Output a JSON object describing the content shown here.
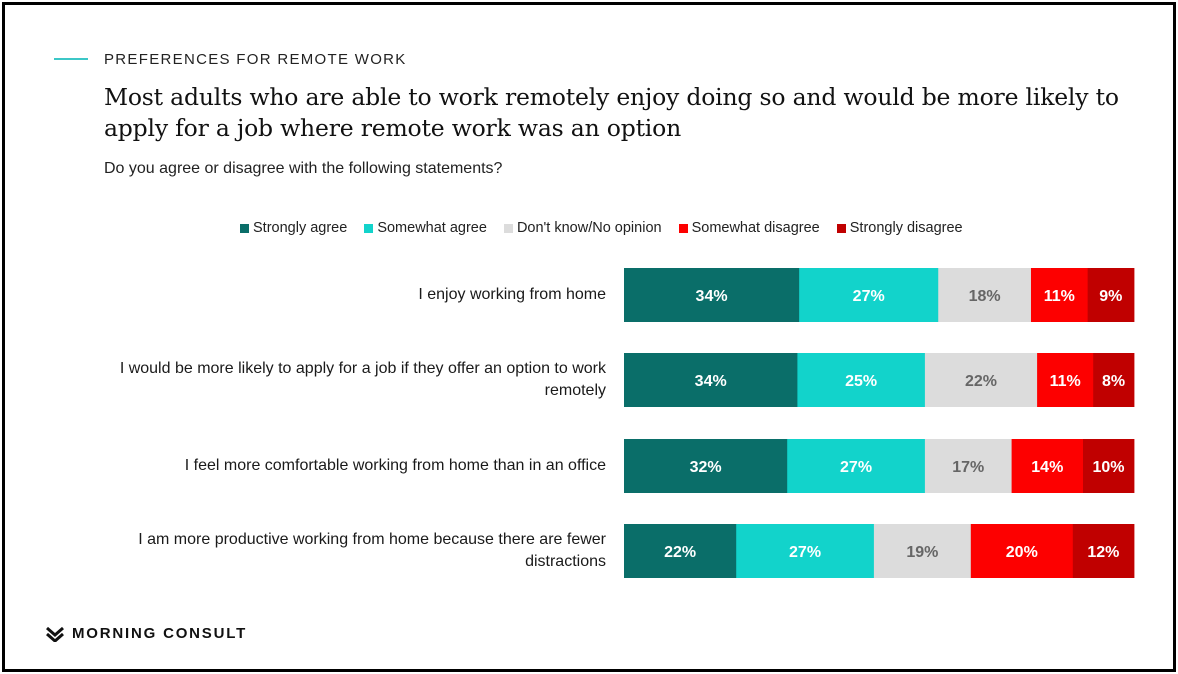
{
  "header": {
    "eyebrow": "PREFERENCES FOR REMOTE WORK",
    "headline": "Most adults who are able to work remotely enjoy doing so and would be more likely to apply for a job where remote work was an option",
    "question": "Do you agree or disagree with the following statements?"
  },
  "brand": {
    "name": "MORNING CONSULT",
    "icon": "morning-consult-logo-icon"
  },
  "colors": {
    "accent_line": "#3cc7c7",
    "strongly_agree": "#0a6e69",
    "somewhat_agree": "#12d3cb",
    "dont_know": "#dcdcdc",
    "somewhat_disagree": "#fd0000",
    "strongly_disagree": "#c00000"
  },
  "chart_data": {
    "type": "bar",
    "orientation": "horizontal",
    "stacked": true,
    "title": "",
    "xlabel": "",
    "ylabel": "",
    "legend_position": "top",
    "grid": false,
    "categories": [
      "I enjoy working from home",
      "I would be more likely to apply for a job if they offer an option to work remotely",
      "I feel more comfortable working from home than in an office",
      "I am more productive working from home because there are fewer distractions"
    ],
    "series": [
      {
        "name": "Strongly agree",
        "color": "#0a6e69",
        "label_color": "#ffffff",
        "values": [
          34,
          34,
          32,
          22
        ]
      },
      {
        "name": "Somewhat agree",
        "color": "#12d3cb",
        "label_color": "#ffffff",
        "values": [
          27,
          25,
          27,
          27
        ]
      },
      {
        "name": "Don't know/No opinion",
        "color": "#dcdcdc",
        "label_color": "#666666",
        "values": [
          18,
          22,
          17,
          19
        ]
      },
      {
        "name": "Somewhat disagree",
        "color": "#fd0000",
        "label_color": "#ffffff",
        "values": [
          11,
          11,
          14,
          20
        ]
      },
      {
        "name": "Strongly disagree",
        "color": "#c00000",
        "label_color": "#ffffff",
        "values": [
          9,
          8,
          10,
          12
        ]
      }
    ],
    "value_suffix": "%"
  }
}
